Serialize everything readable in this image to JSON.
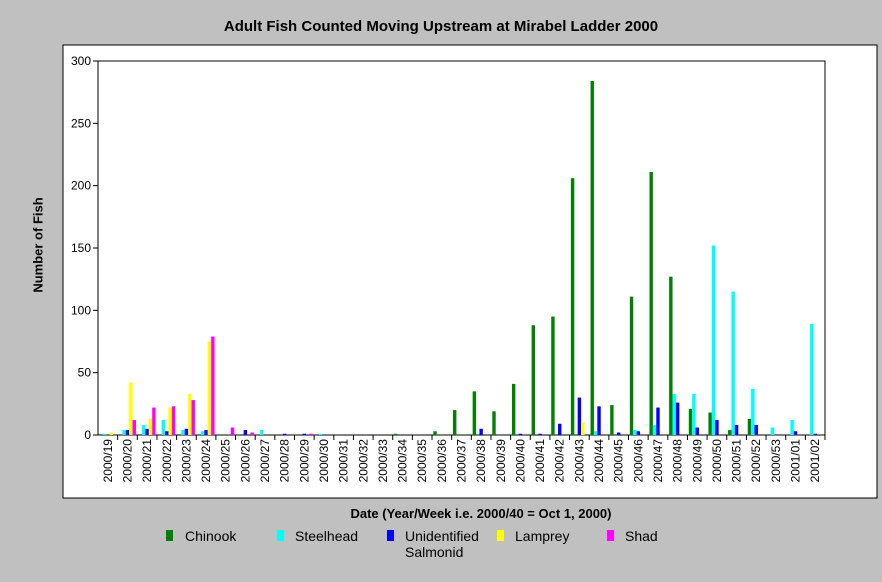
{
  "chart_data": {
    "type": "bar",
    "title": "Adult Fish Counted Moving Upstream at Mirabel Ladder 2000",
    "xlabel": "Date (Year/Week i.e. 2000/40 = Oct 1, 2000)",
    "ylabel": "Number of Fish",
    "ylim": [
      0,
      300
    ],
    "yticks": [
      0,
      50,
      100,
      150,
      200,
      250,
      300
    ],
    "grid": false,
    "legend_position": "bottom",
    "categories": [
      "2000/19",
      "2000/20",
      "2000/21",
      "2000/22",
      "2000/23",
      "2000/24",
      "2000/25",
      "2000/26",
      "2000/27",
      "2000/28",
      "2000/29",
      "2000/30",
      "2000/31",
      "2000/32",
      "2000/33",
      "2000/34",
      "2000/35",
      "2000/36",
      "2000/37",
      "2000/38",
      "2000/39",
      "2000/40",
      "2000/41",
      "2000/42",
      "2000/43",
      "2000/44",
      "2000/45",
      "2000/46",
      "2000/47",
      "2000/48",
      "2000/49",
      "2000/50",
      "2000/51",
      "2000/52",
      "2000/53",
      "2001/01",
      "2001/02"
    ],
    "series": [
      {
        "name": "Chinook",
        "color": "#008000",
        "values": [
          0,
          0,
          0,
          0,
          0,
          0,
          0,
          0,
          0,
          0,
          0,
          0,
          0,
          0,
          0,
          1,
          0,
          3,
          20,
          35,
          19,
          41,
          88,
          95,
          206,
          284,
          24,
          111,
          211,
          127,
          21,
          18,
          4,
          13,
          0,
          0,
          0
        ]
      },
      {
        "name": "Steelhead",
        "color": "#00ffff",
        "values": [
          1,
          4,
          8,
          12,
          4,
          3,
          0,
          0,
          4,
          0,
          0,
          1,
          0,
          0,
          0,
          0,
          0,
          0,
          0,
          0,
          0,
          0,
          0,
          0,
          0,
          3,
          0,
          4,
          8,
          33,
          33,
          152,
          115,
          37,
          6,
          12,
          89
        ]
      },
      {
        "name": "Unidentified Salmonid",
        "color": "#0000ff",
        "values": [
          0,
          4,
          5,
          3,
          5,
          4,
          0,
          4,
          0,
          1,
          1,
          0,
          0,
          0,
          0,
          0,
          0,
          0,
          0,
          5,
          0,
          1,
          1,
          9,
          30,
          23,
          2,
          3,
          22,
          26,
          6,
          12,
          8,
          8,
          0,
          3,
          1
        ]
      },
      {
        "name": "Lamprey",
        "color": "#ffff00",
        "values": [
          2,
          42,
          13,
          22,
          33,
          75,
          0,
          0,
          0,
          0,
          0,
          0,
          0,
          0,
          0,
          0,
          0,
          0,
          0,
          0,
          0,
          0,
          0,
          0,
          10,
          0,
          0,
          0,
          0,
          0,
          0,
          0,
          0,
          0,
          0,
          0,
          0
        ]
      },
      {
        "name": "Shad",
        "color": "#ff00ff",
        "values": [
          0,
          12,
          22,
          23,
          28,
          79,
          6,
          2,
          0,
          0,
          1,
          0,
          0,
          0,
          0,
          0,
          0,
          0,
          0,
          0,
          0,
          0,
          0,
          0,
          0,
          0,
          0,
          0,
          0,
          0,
          0,
          0,
          0,
          0,
          0,
          0,
          0
        ]
      }
    ],
    "legend": [
      {
        "label": "Chinook",
        "color": "#008000"
      },
      {
        "label": "Steelhead",
        "color": "#00ffff"
      },
      {
        "label": "Unidentified Salmonid",
        "color": "#0000ff"
      },
      {
        "label": "Lamprey",
        "color": "#ffff00"
      },
      {
        "label": "Shad",
        "color": "#ff00ff"
      }
    ]
  }
}
